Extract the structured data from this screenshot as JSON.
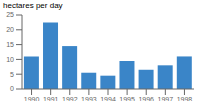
{
  "chart_data": {
    "type": "bar",
    "y_label": "hectares per day",
    "categories": [
      "1990",
      "1991",
      "1992",
      "1993",
      "1994",
      "1995",
      "1996",
      "1997",
      "1998"
    ],
    "values": [
      11,
      22.5,
      14.5,
      5.5,
      4.5,
      9.5,
      6.5,
      8,
      11
    ],
    "color": "#3a85c8",
    "ylim": [
      0,
      25
    ],
    "yticks": [
      0,
      5,
      10,
      15,
      20,
      25
    ],
    "grid": false
  }
}
